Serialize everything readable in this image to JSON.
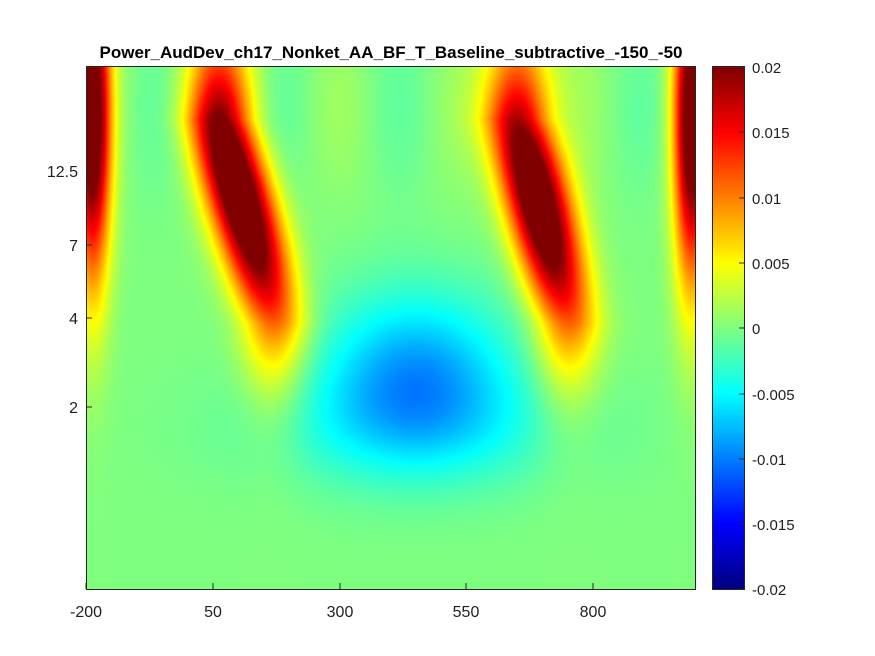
{
  "chart_data": {
    "type": "heatmap",
    "title": "Power_AudDev_ch17_Nonket_AA_BF_T_Baseline_subtractive_-150_-50",
    "xlabel": "",
    "ylabel": "",
    "x_ticks": [
      "-200",
      "50",
      "300",
      "550",
      "800"
    ],
    "y_ticks": [
      "2",
      "4",
      "7",
      "12.5"
    ],
    "xlim": [
      -200,
      1000
    ],
    "colormap": "jet",
    "clim": [
      -0.02,
      0.02
    ],
    "colorbar_ticks": [
      "0.02",
      "0.015",
      "0.01",
      "0.005",
      "0",
      "-0.005",
      "-0.01",
      "-0.015",
      "-0.02"
    ],
    "grid": false,
    "features": [
      {
        "label": "edge_left",
        "time": -190,
        "freq": 11,
        "value": 0.02
      },
      {
        "label": "burst_1",
        "time": 60,
        "freq": 12,
        "value": 0.022
      },
      {
        "label": "burst_1_tail",
        "time": 150,
        "freq": 5,
        "value": 0.012
      },
      {
        "label": "dip",
        "time": 450,
        "freq": 2.7,
        "value": -0.008
      },
      {
        "label": "burst_2",
        "time": 650,
        "freq": 12,
        "value": 0.022
      },
      {
        "label": "burst_2_tail",
        "time": 730,
        "freq": 5,
        "value": 0.012
      },
      {
        "label": "edge_right",
        "time": 990,
        "freq": 11,
        "value": 0.02
      }
    ]
  }
}
